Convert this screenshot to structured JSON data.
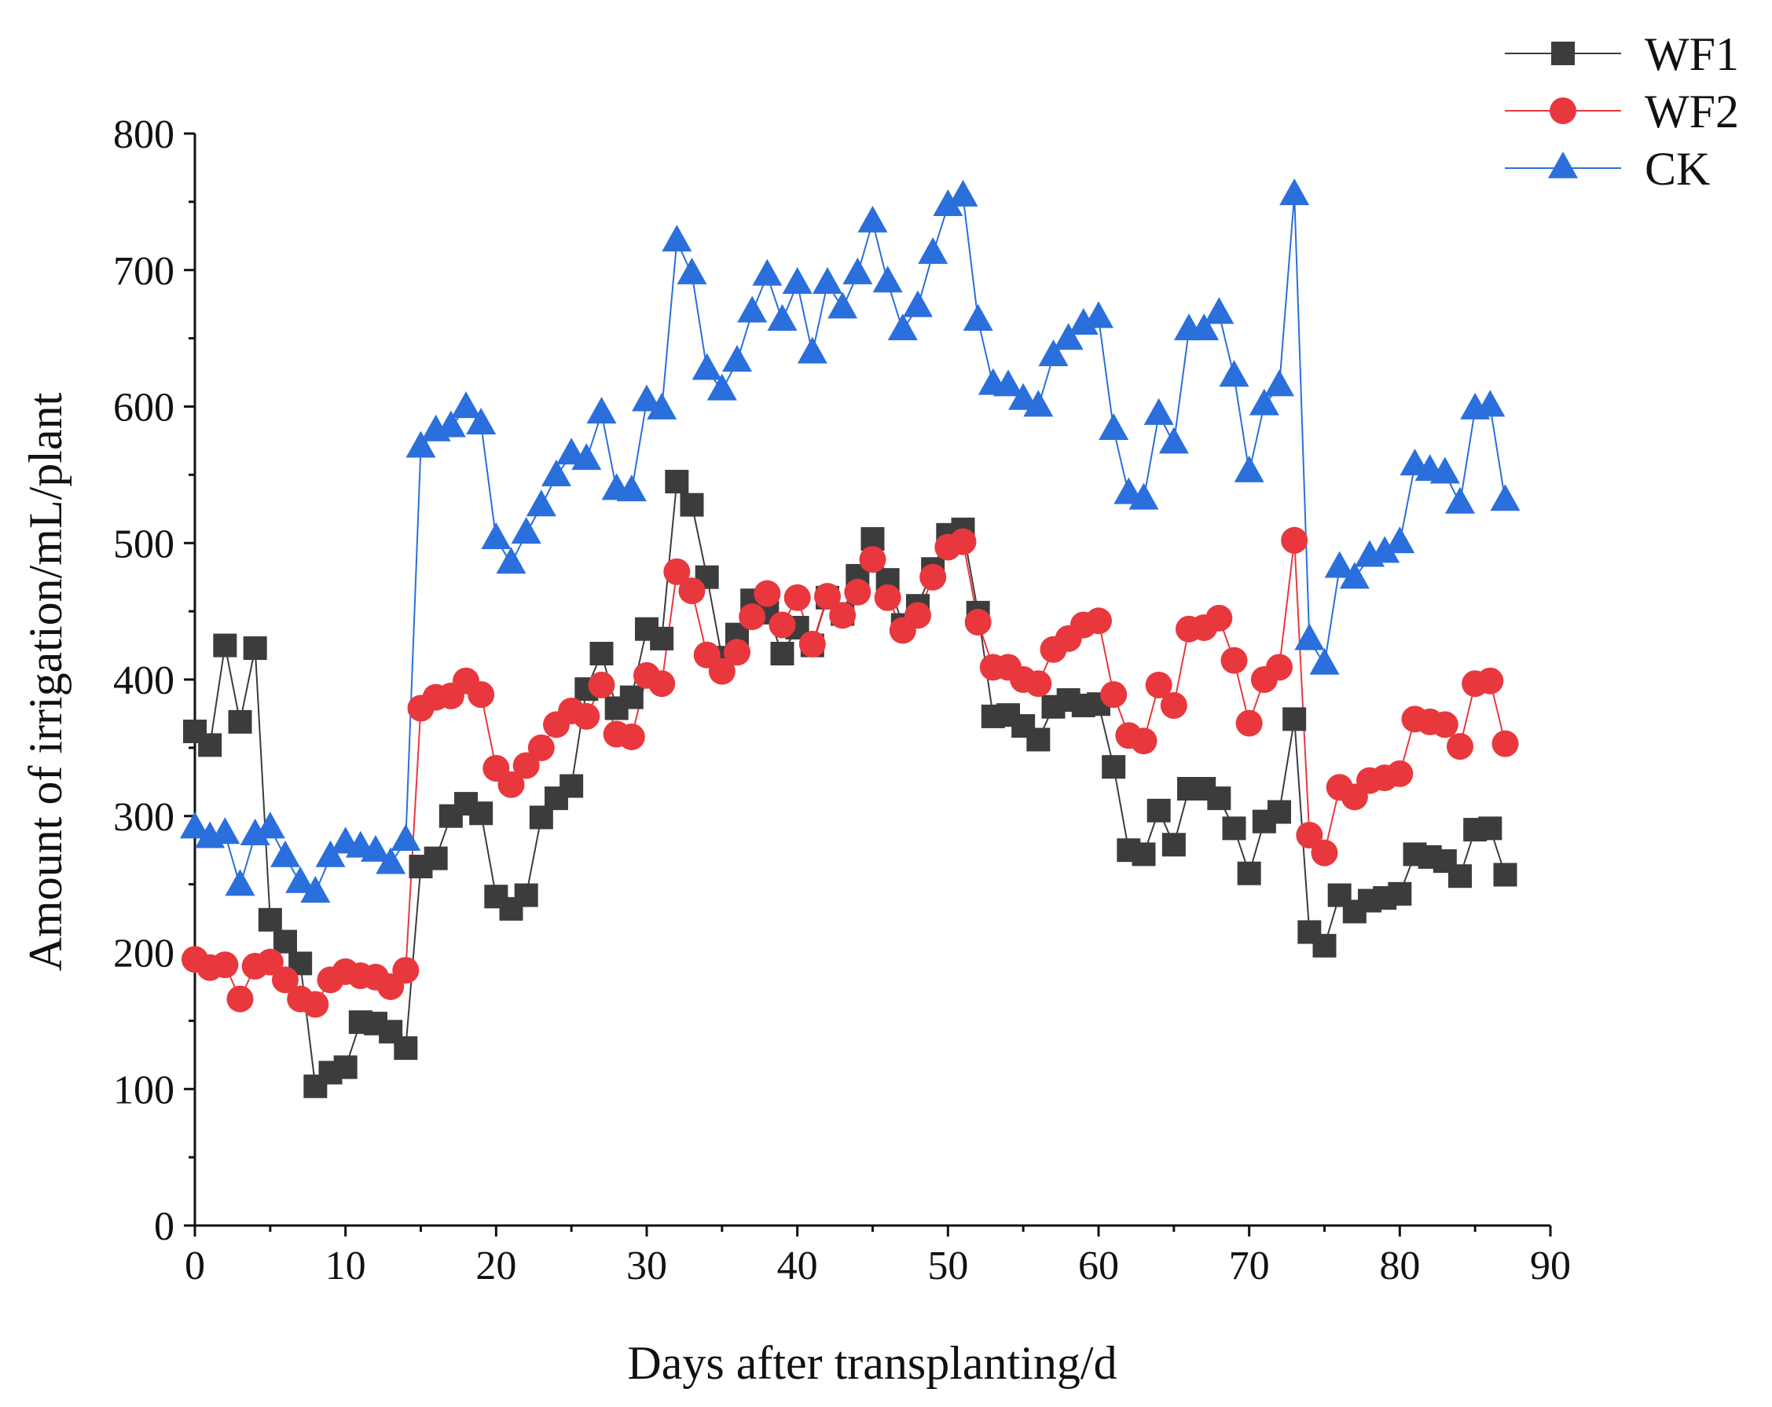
{
  "chart_data": {
    "type": "line",
    "title": "",
    "xlabel": "Days after transplanting/d",
    "ylabel": "Amount of irrigation/mL/plant",
    "xlim": [
      0,
      90
    ],
    "ylim": [
      0,
      800
    ],
    "xticks": [
      0,
      10,
      20,
      30,
      40,
      50,
      60,
      70,
      80,
      90
    ],
    "yticks": [
      0,
      100,
      200,
      300,
      400,
      500,
      600,
      700,
      800
    ],
    "grid": false,
    "legend_position": "top-right",
    "x": [
      0,
      1,
      2,
      3,
      4,
      5,
      6,
      7,
      8,
      9,
      10,
      11,
      12,
      13,
      14,
      15,
      16,
      17,
      18,
      19,
      20,
      21,
      22,
      23,
      24,
      25,
      26,
      27,
      28,
      29,
      30,
      31,
      32,
      33,
      34,
      35,
      36,
      37,
      38,
      39,
      40,
      41,
      42,
      43,
      44,
      45,
      46,
      47,
      48,
      49,
      50,
      51,
      52,
      53,
      54,
      55,
      56,
      57,
      58,
      59,
      60,
      61,
      62,
      63,
      64,
      65,
      66,
      67,
      68,
      69,
      70,
      71,
      72,
      73,
      74,
      75,
      76,
      77,
      78,
      79,
      80,
      81,
      82,
      83,
      84,
      85,
      86,
      87
    ],
    "series": [
      {
        "name": "WF1",
        "color": "#3c3c3c",
        "marker": "square",
        "values": [
          362,
          352,
          425,
          369,
          423,
          224,
          208,
          192,
          102,
          112,
          116,
          149,
          148,
          142,
          130,
          263,
          269,
          300,
          309,
          302,
          241,
          232,
          242,
          299,
          313,
          322,
          393,
          419,
          379,
          387,
          437,
          430,
          545,
          528,
          475,
          416,
          433,
          458,
          449,
          419,
          438,
          425,
          460,
          448,
          476,
          503,
          473,
          440,
          454,
          481,
          506,
          510,
          449,
          373,
          374,
          366,
          356,
          380,
          385,
          381,
          382,
          336,
          275,
          272,
          304,
          279,
          320,
          320,
          313,
          291,
          258,
          296,
          303,
          371,
          215,
          205,
          242,
          230,
          238,
          240,
          243,
          272,
          270,
          267,
          256,
          290,
          291,
          257
        ]
      },
      {
        "name": "WF2",
        "color": "#e8383d",
        "marker": "circle",
        "values": [
          195,
          189,
          191,
          166,
          190,
          193,
          180,
          166,
          162,
          180,
          186,
          183,
          182,
          175,
          187,
          379,
          387,
          388,
          399,
          389,
          335,
          323,
          337,
          350,
          367,
          377,
          373,
          396,
          360,
          358,
          403,
          397,
          479,
          465,
          418,
          406,
          420,
          446,
          463,
          440,
          460,
          426,
          461,
          447,
          464,
          488,
          460,
          436,
          447,
          475,
          497,
          501,
          442,
          409,
          409,
          400,
          397,
          422,
          430,
          440,
          443,
          389,
          359,
          355,
          396,
          381,
          437,
          438,
          445,
          414,
          368,
          400,
          409,
          502,
          286,
          273,
          321,
          314,
          326,
          328,
          331,
          371,
          369,
          367,
          351,
          397,
          399,
          353
        ]
      },
      {
        "name": "CK",
        "color": "#2a6fdb",
        "marker": "triangle",
        "values": [
          291,
          284,
          287,
          249,
          286,
          291,
          270,
          251,
          244,
          270,
          280,
          277,
          274,
          265,
          282,
          570,
          582,
          585,
          599,
          587,
          503,
          485,
          507,
          527,
          549,
          565,
          561,
          595,
          539,
          538,
          604,
          598,
          721,
          697,
          627,
          612,
          633,
          669,
          696,
          663,
          690,
          639,
          690,
          672,
          697,
          735,
          691,
          656,
          673,
          712,
          747,
          754,
          663,
          616,
          615,
          605,
          600,
          637,
          649,
          660,
          665,
          583,
          536,
          532,
          594,
          573,
          656,
          656,
          668,
          622,
          552,
          601,
          615,
          755,
          429,
          411,
          482,
          474,
          490,
          493,
          500,
          557,
          553,
          551,
          529,
          598,
          600,
          531
        ]
      }
    ]
  }
}
